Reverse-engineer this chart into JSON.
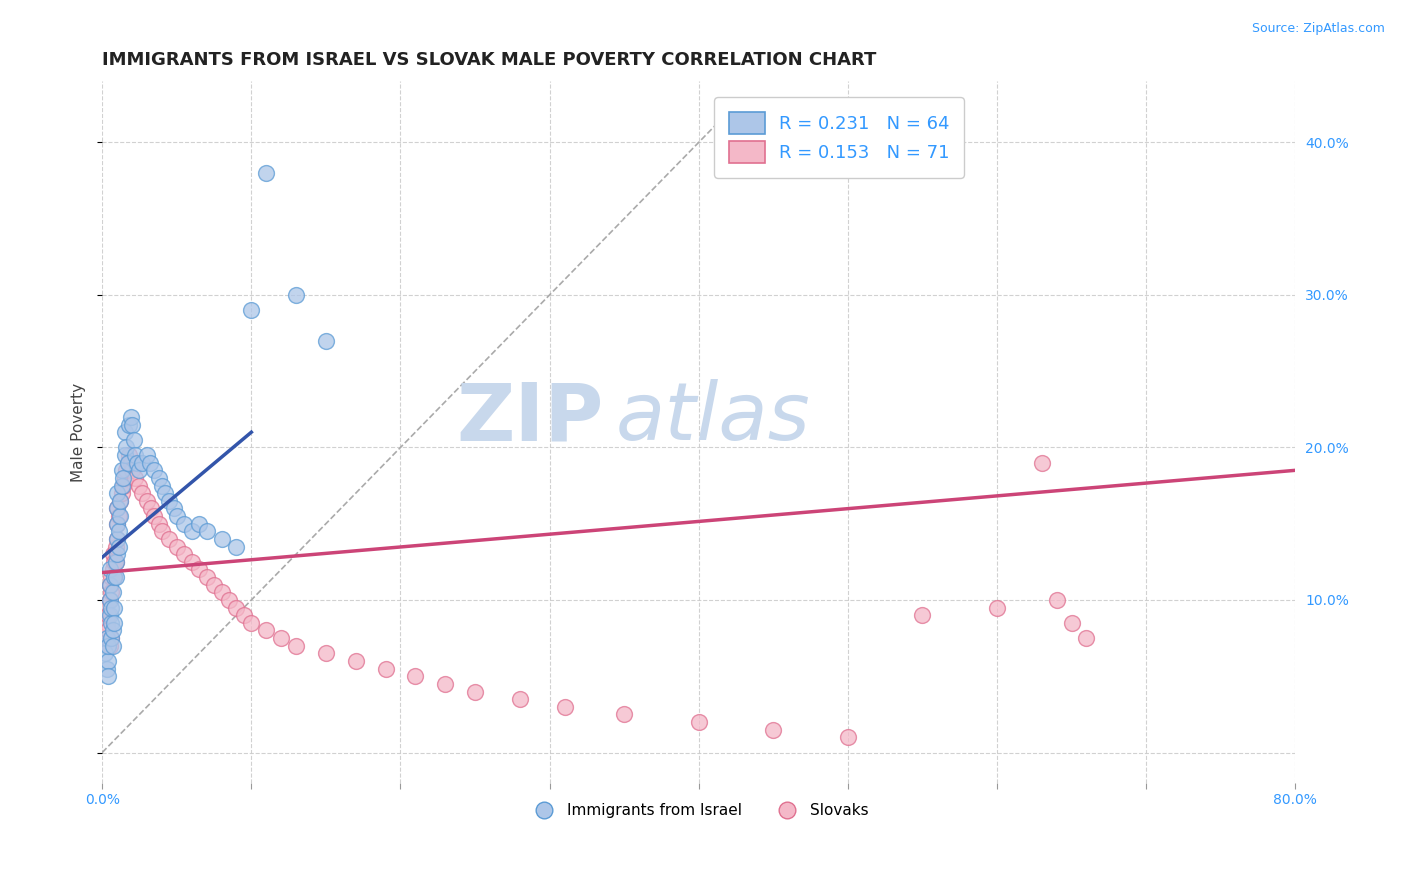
{
  "title": "IMMIGRANTS FROM ISRAEL VS SLOVAK MALE POVERTY CORRELATION CHART",
  "source": "Source: ZipAtlas.com",
  "ylabel": "Male Poverty",
  "xlim": [
    0.0,
    0.8
  ],
  "ylim": [
    -0.02,
    0.44
  ],
  "xticks": [
    0.0,
    0.1,
    0.2,
    0.3,
    0.4,
    0.5,
    0.6,
    0.7,
    0.8
  ],
  "xticklabels": [
    "0.0%",
    "",
    "",
    "",
    "",
    "",
    "",
    "",
    "80.0%"
  ],
  "yticks_right": [
    0.1,
    0.2,
    0.3,
    0.4
  ],
  "ytick_right_labels": [
    "10.0%",
    "20.0%",
    "30.0%",
    "40.0%"
  ],
  "legend_r1": "R = 0.231",
  "legend_n1": "N = 64",
  "legend_r2": "R = 0.153",
  "legend_n2": "N = 71",
  "legend_label1": "Immigrants from Israel",
  "legend_label2": "Slovaks",
  "blue_color": "#adc6e8",
  "blue_edge": "#5b9bd5",
  "pink_color": "#f4b8c8",
  "pink_edge": "#e07090",
  "trendline_blue": "#3355aa",
  "trendline_pink": "#cc4477",
  "background_color": "#ffffff",
  "grid_color": "#cccccc",
  "watermark_zip": "ZIP",
  "watermark_atlas": "atlas",
  "watermark_color_zip": "#c8d8ec",
  "watermark_color_atlas": "#c8d8ec",
  "blue_scatter_x": [
    0.002,
    0.003,
    0.003,
    0.004,
    0.004,
    0.004,
    0.005,
    0.005,
    0.005,
    0.005,
    0.006,
    0.006,
    0.006,
    0.007,
    0.007,
    0.007,
    0.008,
    0.008,
    0.008,
    0.009,
    0.009,
    0.01,
    0.01,
    0.01,
    0.01,
    0.01,
    0.011,
    0.011,
    0.012,
    0.012,
    0.013,
    0.013,
    0.014,
    0.015,
    0.015,
    0.016,
    0.017,
    0.018,
    0.019,
    0.02,
    0.021,
    0.022,
    0.023,
    0.025,
    0.027,
    0.03,
    0.032,
    0.035,
    0.038,
    0.04,
    0.042,
    0.045,
    0.048,
    0.05,
    0.055,
    0.06,
    0.065,
    0.07,
    0.08,
    0.09,
    0.1,
    0.11,
    0.13,
    0.15
  ],
  "blue_scatter_y": [
    0.065,
    0.075,
    0.055,
    0.06,
    0.07,
    0.05,
    0.12,
    0.11,
    0.1,
    0.09,
    0.085,
    0.095,
    0.075,
    0.08,
    0.07,
    0.105,
    0.115,
    0.095,
    0.085,
    0.115,
    0.125,
    0.13,
    0.14,
    0.15,
    0.16,
    0.17,
    0.135,
    0.145,
    0.155,
    0.165,
    0.175,
    0.185,
    0.18,
    0.195,
    0.21,
    0.2,
    0.19,
    0.215,
    0.22,
    0.215,
    0.205,
    0.195,
    0.19,
    0.185,
    0.19,
    0.195,
    0.19,
    0.185,
    0.18,
    0.175,
    0.17,
    0.165,
    0.16,
    0.155,
    0.15,
    0.145,
    0.15,
    0.145,
    0.14,
    0.135,
    0.29,
    0.38,
    0.3,
    0.27
  ],
  "pink_scatter_x": [
    0.002,
    0.003,
    0.003,
    0.004,
    0.004,
    0.005,
    0.005,
    0.005,
    0.006,
    0.006,
    0.006,
    0.007,
    0.007,
    0.008,
    0.008,
    0.009,
    0.009,
    0.01,
    0.01,
    0.01,
    0.011,
    0.012,
    0.013,
    0.014,
    0.015,
    0.016,
    0.017,
    0.018,
    0.019,
    0.02,
    0.022,
    0.025,
    0.027,
    0.03,
    0.033,
    0.035,
    0.038,
    0.04,
    0.045,
    0.05,
    0.055,
    0.06,
    0.065,
    0.07,
    0.075,
    0.08,
    0.085,
    0.09,
    0.095,
    0.1,
    0.11,
    0.12,
    0.13,
    0.15,
    0.17,
    0.19,
    0.21,
    0.23,
    0.25,
    0.28,
    0.31,
    0.35,
    0.4,
    0.45,
    0.5,
    0.55,
    0.6,
    0.63,
    0.64,
    0.65,
    0.66
  ],
  "pink_scatter_y": [
    0.095,
    0.085,
    0.075,
    0.08,
    0.09,
    0.1,
    0.11,
    0.07,
    0.105,
    0.115,
    0.075,
    0.12,
    0.13,
    0.125,
    0.115,
    0.125,
    0.135,
    0.14,
    0.15,
    0.16,
    0.155,
    0.165,
    0.17,
    0.175,
    0.18,
    0.185,
    0.19,
    0.195,
    0.19,
    0.185,
    0.18,
    0.175,
    0.17,
    0.165,
    0.16,
    0.155,
    0.15,
    0.145,
    0.14,
    0.135,
    0.13,
    0.125,
    0.12,
    0.115,
    0.11,
    0.105,
    0.1,
    0.095,
    0.09,
    0.085,
    0.08,
    0.075,
    0.07,
    0.065,
    0.06,
    0.055,
    0.05,
    0.045,
    0.04,
    0.035,
    0.03,
    0.025,
    0.02,
    0.015,
    0.01,
    0.09,
    0.095,
    0.19,
    0.1,
    0.085,
    0.075
  ]
}
